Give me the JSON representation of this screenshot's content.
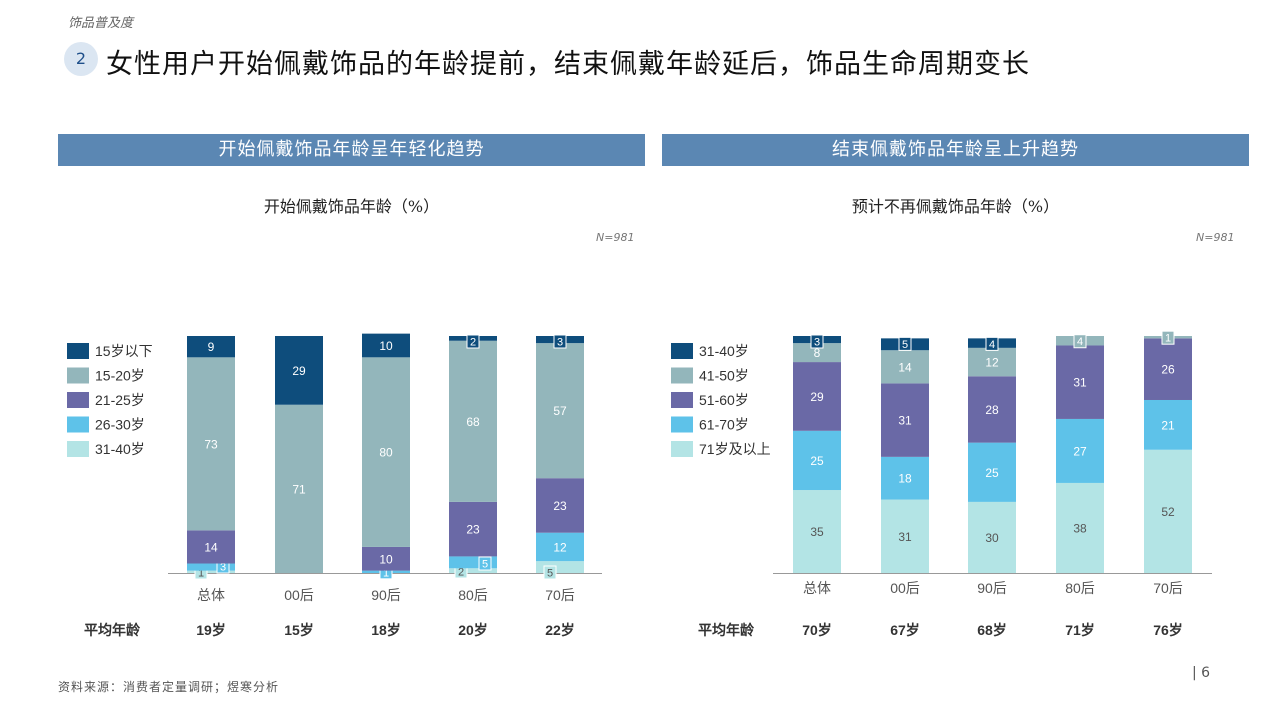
{
  "header": {
    "section_tag": "饰品普及度",
    "number": "2",
    "headline": "女性用户开始佩戴饰品的年龄提前，结束佩戴年龄延后，饰品生命周期变长"
  },
  "left_panel": {
    "header": "开始佩戴饰品年龄呈年轻化趋势",
    "title": "开始佩戴饰品年龄（%）",
    "n_note": "N=981",
    "avg_label": "平均年龄"
  },
  "right_panel": {
    "header": "结束佩戴饰品年龄呈上升趋势",
    "title": "预计不再佩戴饰品年龄（%）",
    "n_note": "N=981",
    "avg_label": "平均年龄"
  },
  "footer": {
    "source": "资料来源：消费者定量调研；煜寒分析",
    "page_number": "| 6"
  },
  "colors": {
    "dark_navy": "#0e4d7c",
    "grey_teal": "#93b6bb",
    "purple": "#6a69a6",
    "sky_blue": "#5ec2e9",
    "pale_aqua": "#b3e4e5",
    "panel_header": "#5b87b3"
  },
  "chart_data": [
    {
      "type": "bar",
      "stacked": true,
      "categories": [
        "总体",
        "00后",
        "90后",
        "80后",
        "70后"
      ],
      "series": [
        {
          "name": "31-40岁",
          "color": "#b3e4e5",
          "values": [
            1,
            0,
            0,
            2,
            5
          ]
        },
        {
          "name": "26-30岁",
          "color": "#5ec2e9",
          "values": [
            3,
            0,
            1,
            5,
            12
          ]
        },
        {
          "name": "21-25岁",
          "color": "#6a69a6",
          "values": [
            14,
            0,
            10,
            23,
            23
          ]
        },
        {
          "name": "15-20岁",
          "color": "#93b6bb",
          "values": [
            73,
            71,
            80,
            68,
            57
          ]
        },
        {
          "name": "15岁以下",
          "color": "#0e4d7c",
          "values": [
            9,
            29,
            10,
            2,
            3
          ]
        }
      ],
      "averages": [
        "19岁",
        "15岁",
        "18岁",
        "20岁",
        "22岁"
      ],
      "ylim": [
        0,
        100
      ],
      "legend_position": "left"
    },
    {
      "type": "bar",
      "stacked": true,
      "categories": [
        "总体",
        "00后",
        "90后",
        "80后",
        "70后"
      ],
      "series": [
        {
          "name": "71岁及以上",
          "color": "#b3e4e5",
          "values": [
            35,
            31,
            30,
            38,
            52
          ]
        },
        {
          "name": "61-70岁",
          "color": "#5ec2e9",
          "values": [
            25,
            18,
            25,
            27,
            21
          ]
        },
        {
          "name": "51-60岁",
          "color": "#6a69a6",
          "values": [
            29,
            31,
            28,
            31,
            26
          ]
        },
        {
          "name": "41-50岁",
          "color": "#93b6bb",
          "values": [
            8,
            14,
            12,
            4,
            1
          ]
        },
        {
          "name": "31-40岁",
          "color": "#0e4d7c",
          "values": [
            3,
            5,
            4,
            0,
            0
          ]
        }
      ],
      "averages": [
        "70岁",
        "67岁",
        "68岁",
        "71岁",
        "76岁"
      ],
      "ylim": [
        0,
        100
      ],
      "legend_position": "left"
    }
  ]
}
